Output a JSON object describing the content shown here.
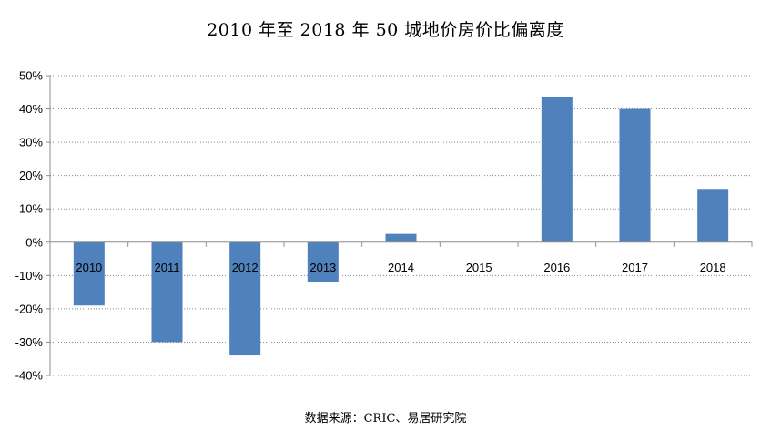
{
  "chart_data": {
    "type": "bar",
    "title": "2010 年至 2018 年 50 城地价房价比偏离度",
    "source": "数据来源：CRIC、易居研究院",
    "categories": [
      "2010",
      "2011",
      "2012",
      "2013",
      "2014",
      "2015",
      "2016",
      "2017",
      "2018"
    ],
    "series": [
      {
        "values": [
          -19,
          -30,
          -34,
          -12,
          2.5,
          0,
          43.5,
          40,
          16
        ],
        "color": "#4F81BD"
      }
    ],
    "xlabel": "",
    "ylabel": "",
    "ylim": [
      -40,
      50
    ],
    "yticks": [
      50,
      40,
      30,
      20,
      10,
      0,
      -10,
      -20,
      -30,
      -40
    ],
    "ytick_format": "percent",
    "grid": "horizontal-dotted",
    "legend": "none"
  }
}
